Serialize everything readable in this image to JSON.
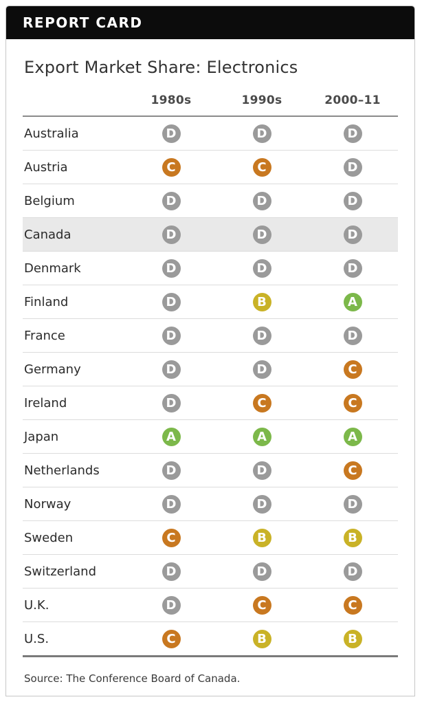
{
  "header": {
    "title": "REPORT CARD"
  },
  "card": {
    "title": "Export Market Share: Electronics",
    "source": "Source: The Conference Board of Canada."
  },
  "grade_colors": {
    "A": "#7cb84a",
    "B": "#c9b227",
    "C": "#c87820",
    "D": "#9a9a9a"
  },
  "chart_data": {
    "type": "table",
    "title": "Export Market Share: Electronics",
    "columns": [
      "1980s",
      "1990s",
      "2000–11"
    ],
    "highlighted_row": "Canada",
    "rows": [
      {
        "country": "Australia",
        "grades": [
          "D",
          "D",
          "D"
        ]
      },
      {
        "country": "Austria",
        "grades": [
          "C",
          "C",
          "D"
        ]
      },
      {
        "country": "Belgium",
        "grades": [
          "D",
          "D",
          "D"
        ]
      },
      {
        "country": "Canada",
        "grades": [
          "D",
          "D",
          "D"
        ]
      },
      {
        "country": "Denmark",
        "grades": [
          "D",
          "D",
          "D"
        ]
      },
      {
        "country": "Finland",
        "grades": [
          "D",
          "B",
          "A"
        ]
      },
      {
        "country": "France",
        "grades": [
          "D",
          "D",
          "D"
        ]
      },
      {
        "country": "Germany",
        "grades": [
          "D",
          "D",
          "C"
        ]
      },
      {
        "country": "Ireland",
        "grades": [
          "D",
          "C",
          "C"
        ]
      },
      {
        "country": "Japan",
        "grades": [
          "A",
          "A",
          "A"
        ]
      },
      {
        "country": "Netherlands",
        "grades": [
          "D",
          "D",
          "C"
        ]
      },
      {
        "country": "Norway",
        "grades": [
          "D",
          "D",
          "D"
        ]
      },
      {
        "country": "Sweden",
        "grades": [
          "C",
          "B",
          "B"
        ]
      },
      {
        "country": "Switzerland",
        "grades": [
          "D",
          "D",
          "D"
        ]
      },
      {
        "country": "U.K.",
        "grades": [
          "D",
          "C",
          "C"
        ]
      },
      {
        "country": "U.S.",
        "grades": [
          "C",
          "B",
          "B"
        ]
      }
    ]
  }
}
